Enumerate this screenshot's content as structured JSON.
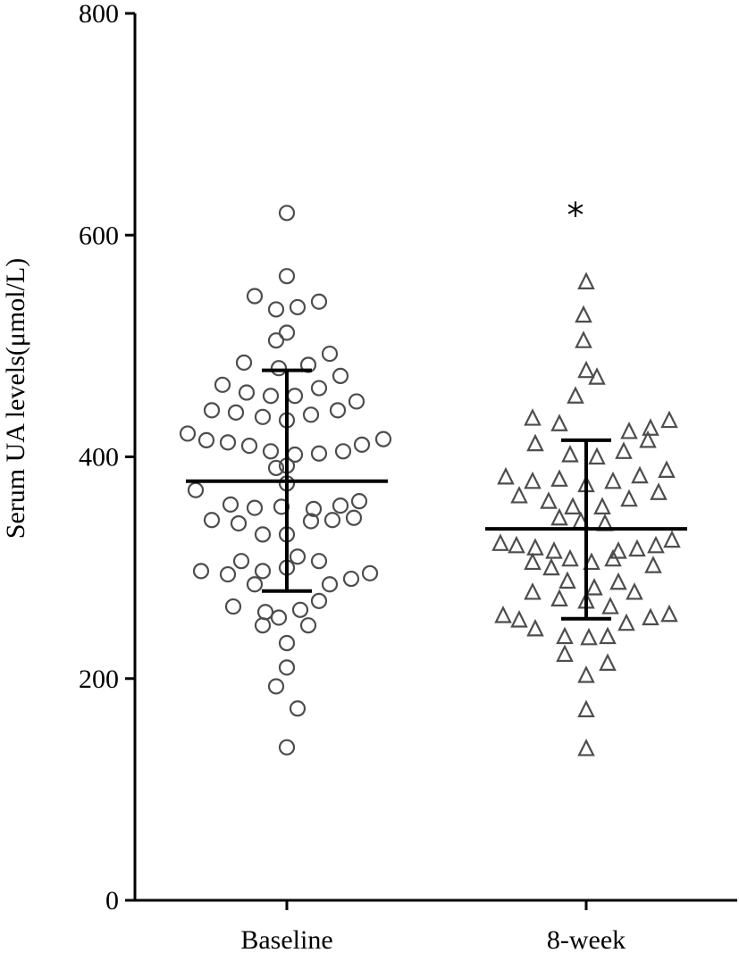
{
  "chart_data": {
    "type": "scatter",
    "ylabel": "Serum UA levels(μmol/L)",
    "xlabel": "",
    "ylim": [
      0,
      800
    ],
    "yticks": [
      0,
      200,
      400,
      600,
      800
    ],
    "categories": [
      "Baseline",
      "8-week"
    ],
    "grid": false,
    "legend": "none",
    "marker_color": "#4d4d4d",
    "series": [
      {
        "category": "Baseline",
        "marker": "circle",
        "mean": 378,
        "sd_low": 279,
        "sd_high": 478,
        "points": [
          [
            0.0,
            620
          ],
          [
            0.0,
            563
          ],
          [
            -0.12,
            545
          ],
          [
            0.04,
            535
          ],
          [
            0.12,
            540
          ],
          [
            -0.04,
            533
          ],
          [
            0.0,
            512
          ],
          [
            -0.04,
            505
          ],
          [
            0.16,
            493
          ],
          [
            -0.16,
            485
          ],
          [
            -0.03,
            480
          ],
          [
            0.08,
            483
          ],
          [
            -0.24,
            465
          ],
          [
            -0.15,
            458
          ],
          [
            -0.06,
            455
          ],
          [
            0.03,
            455
          ],
          [
            0.12,
            462
          ],
          [
            0.2,
            473
          ],
          [
            -0.28,
            442
          ],
          [
            -0.19,
            440
          ],
          [
            -0.09,
            436
          ],
          [
            0.0,
            433
          ],
          [
            0.09,
            438
          ],
          [
            0.19,
            442
          ],
          [
            0.26,
            450
          ],
          [
            -0.37,
            421
          ],
          [
            -0.3,
            415
          ],
          [
            -0.22,
            413
          ],
          [
            -0.14,
            410
          ],
          [
            -0.06,
            405
          ],
          [
            0.03,
            402
          ],
          [
            0.12,
            403
          ],
          [
            0.21,
            405
          ],
          [
            0.28,
            411
          ],
          [
            0.36,
            416
          ],
          [
            0.0,
            392
          ],
          [
            -0.04,
            390
          ],
          [
            0.0,
            376
          ],
          [
            -0.34,
            370
          ],
          [
            -0.21,
            357
          ],
          [
            -0.12,
            354
          ],
          [
            -0.02,
            355
          ],
          [
            0.1,
            353
          ],
          [
            0.2,
            356
          ],
          [
            0.27,
            360
          ],
          [
            -0.28,
            343
          ],
          [
            -0.18,
            340
          ],
          [
            0.09,
            342
          ],
          [
            0.17,
            343
          ],
          [
            0.25,
            345
          ],
          [
            -0.09,
            330
          ],
          [
            0.0,
            330
          ],
          [
            0.04,
            310
          ],
          [
            0.12,
            306
          ],
          [
            -0.17,
            306
          ],
          [
            -0.32,
            297
          ],
          [
            -0.22,
            294
          ],
          [
            -0.09,
            297
          ],
          [
            0.0,
            300
          ],
          [
            0.31,
            295
          ],
          [
            -0.12,
            285
          ],
          [
            0.16,
            285
          ],
          [
            0.24,
            290
          ],
          [
            -0.2,
            265
          ],
          [
            -0.08,
            260
          ],
          [
            0.05,
            262
          ],
          [
            0.12,
            270
          ],
          [
            -0.09,
            248
          ],
          [
            -0.03,
            255
          ],
          [
            0.08,
            248
          ],
          [
            0.0,
            232
          ],
          [
            0.0,
            210
          ],
          [
            -0.04,
            193
          ],
          [
            0.04,
            173
          ],
          [
            0.0,
            138
          ]
        ]
      },
      {
        "category": "8-week",
        "marker": "triangle",
        "mean": 335,
        "sd_low": 254,
        "sd_high": 415,
        "points": [
          [
            0.0,
            558
          ],
          [
            -0.01,
            528
          ],
          [
            -0.01,
            505
          ],
          [
            0.0,
            478
          ],
          [
            0.04,
            472
          ],
          [
            -0.04,
            455
          ],
          [
            -0.2,
            435
          ],
          [
            -0.1,
            430
          ],
          [
            0.16,
            423
          ],
          [
            0.24,
            426
          ],
          [
            0.31,
            433
          ],
          [
            -0.19,
            412
          ],
          [
            -0.06,
            402
          ],
          [
            0.04,
            400
          ],
          [
            0.14,
            405
          ],
          [
            0.23,
            415
          ],
          [
            -0.3,
            382
          ],
          [
            -0.2,
            378
          ],
          [
            -0.1,
            380
          ],
          [
            0.0,
            375
          ],
          [
            0.1,
            378
          ],
          [
            0.2,
            383
          ],
          [
            0.3,
            388
          ],
          [
            -0.25,
            365
          ],
          [
            -0.14,
            360
          ],
          [
            -0.05,
            355
          ],
          [
            0.06,
            355
          ],
          [
            0.16,
            362
          ],
          [
            0.27,
            368
          ],
          [
            -0.1,
            345
          ],
          [
            -0.02,
            342
          ],
          [
            0.07,
            340
          ],
          [
            -0.32,
            322
          ],
          [
            -0.26,
            320
          ],
          [
            -0.19,
            318
          ],
          [
            -0.12,
            315
          ],
          [
            0.12,
            315
          ],
          [
            0.19,
            317
          ],
          [
            0.26,
            320
          ],
          [
            0.32,
            325
          ],
          [
            -0.2,
            305
          ],
          [
            -0.13,
            300
          ],
          [
            -0.06,
            308
          ],
          [
            0.02,
            305
          ],
          [
            0.1,
            308
          ],
          [
            0.25,
            302
          ],
          [
            -0.07,
            288
          ],
          [
            0.03,
            282
          ],
          [
            0.12,
            287
          ],
          [
            0.18,
            278
          ],
          [
            -0.2,
            278
          ],
          [
            -0.1,
            272
          ],
          [
            0.0,
            270
          ],
          [
            0.09,
            265
          ],
          [
            -0.31,
            257
          ],
          [
            -0.25,
            253
          ],
          [
            0.24,
            255
          ],
          [
            0.31,
            258
          ],
          [
            -0.19,
            245
          ],
          [
            -0.08,
            238
          ],
          [
            0.01,
            237
          ],
          [
            0.08,
            238
          ],
          [
            0.15,
            250
          ],
          [
            -0.08,
            222
          ],
          [
            0.08,
            214
          ],
          [
            0.0,
            203
          ],
          [
            0.0,
            172
          ],
          [
            0.0,
            137
          ]
        ]
      }
    ],
    "annotations": [
      {
        "text": "*",
        "category": "8-week",
        "y": 625
      }
    ]
  }
}
